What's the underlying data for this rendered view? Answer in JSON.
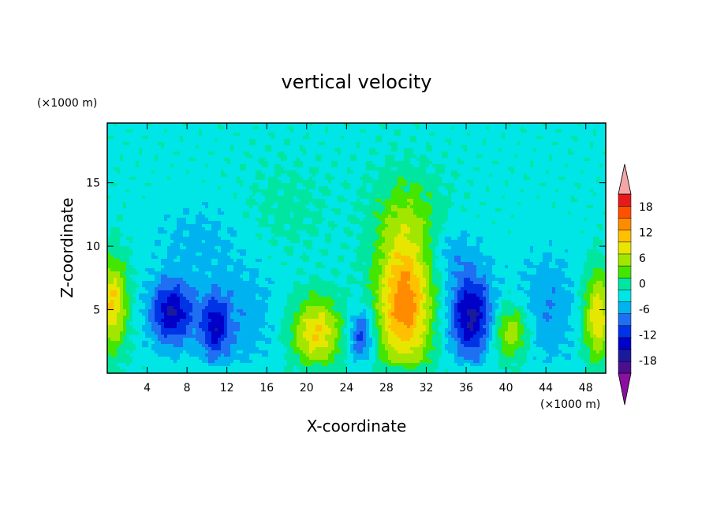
{
  "chart_data": {
    "type": "heatmap",
    "title": "vertical velocity",
    "xlabel": "X-coordinate",
    "ylabel": "Z-coordinate",
    "x_unit": "(×1000 m)",
    "y_unit": "(×1000 m)",
    "xlim": [
      0,
      50
    ],
    "ylim": [
      0,
      19.7
    ],
    "x_ticks": [
      4,
      8,
      12,
      16,
      20,
      24,
      28,
      32,
      36,
      40,
      44,
      48
    ],
    "y_ticks": [
      5,
      10,
      15
    ],
    "colorbar": {
      "tick_labels": [
        18,
        12,
        6,
        0,
        -6,
        -12,
        -18
      ],
      "levels": [
        -21,
        -18,
        -15,
        -12,
        -9,
        -6,
        -3,
        0,
        3,
        6,
        9,
        12,
        15,
        18,
        21
      ],
      "colors": [
        "#4a0e8f",
        "#1a1a9c",
        "#0000c8",
        "#0033e6",
        "#1f6ff2",
        "#00b2f0",
        "#00e5e5",
        "#00e6a0",
        "#44e600",
        "#a2e600",
        "#e6e600",
        "#ffc000",
        "#ff8c00",
        "#ff5000",
        "#e8191a"
      ],
      "over_color": "#f4a6a6",
      "under_color": "#8b0fa0"
    },
    "background_value": -1,
    "features": [
      {
        "x": 0.5,
        "z": 5.5,
        "sx": 1.1,
        "sz": 2.6,
        "w": 13
      },
      {
        "x": 6.5,
        "z": 4.8,
        "sx": 1.6,
        "sz": 1.8,
        "w": -14
      },
      {
        "x": 10.8,
        "z": 3.6,
        "sx": 1.0,
        "sz": 1.8,
        "w": -11
      },
      {
        "x": 13.5,
        "z": 4.5,
        "sx": 2.5,
        "sz": 3.0,
        "w": -4
      },
      {
        "x": 21.0,
        "z": 3.2,
        "sx": 1.8,
        "sz": 1.9,
        "w": 13
      },
      {
        "x": 25.5,
        "z": 3.0,
        "sx": 0.9,
        "sz": 1.5,
        "w": -10
      },
      {
        "x": 29.8,
        "z": 5.5,
        "sx": 2.0,
        "sz": 3.8,
        "w": 18
      },
      {
        "x": 30.0,
        "z": 12.5,
        "sx": 2.5,
        "sz": 2.5,
        "w": 5
      },
      {
        "x": 36.5,
        "z": 4.5,
        "sx": 1.6,
        "sz": 2.3,
        "w": -15
      },
      {
        "x": 34.5,
        "z": 9.5,
        "sx": 1.8,
        "sz": 1.5,
        "w": -4
      },
      {
        "x": 40.5,
        "z": 3.3,
        "sx": 1.4,
        "sz": 1.6,
        "w": 10
      },
      {
        "x": 44.0,
        "z": 5.0,
        "sx": 2.2,
        "sz": 3.0,
        "w": -5
      },
      {
        "x": 49.2,
        "z": 4.5,
        "sx": 1.0,
        "sz": 2.5,
        "w": 13
      },
      {
        "x": 9.0,
        "z": 10.5,
        "sx": 3.0,
        "sz": 2.0,
        "w": -3
      },
      {
        "x": 18.0,
        "z": 13.0,
        "sx": 3.0,
        "sz": 2.5,
        "w": 2
      }
    ]
  }
}
